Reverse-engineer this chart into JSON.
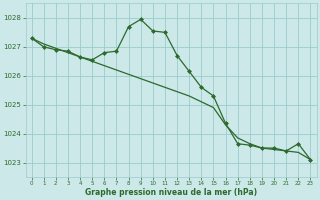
{
  "x": [
    0,
    1,
    2,
    3,
    4,
    5,
    6,
    7,
    8,
    9,
    10,
    11,
    12,
    13,
    14,
    15,
    16,
    17,
    18,
    19,
    20,
    21,
    22,
    23
  ],
  "line_straight_y": [
    1027.3,
    1027.1,
    1026.95,
    1026.8,
    1026.65,
    1026.5,
    1026.35,
    1026.2,
    1026.05,
    1025.9,
    1025.75,
    1025.6,
    1025.45,
    1025.3,
    1025.1,
    1024.9,
    1024.3,
    1023.85,
    1023.65,
    1023.5,
    1023.45,
    1023.4,
    1023.35,
    1023.1
  ],
  "line_jagged_y": [
    1027.3,
    1027.0,
    1026.9,
    1026.85,
    1026.65,
    1026.55,
    1026.8,
    1026.85,
    1027.7,
    1027.95,
    1027.55,
    1027.5,
    1026.7,
    1026.15,
    1025.6,
    1025.3,
    1024.35,
    1023.65,
    1023.6,
    1023.5,
    1023.5,
    1023.4,
    1023.65,
    1023.1
  ],
  "line_color": "#2d6a2d",
  "bg_color": "#cce8e8",
  "grid_color": "#99cccc",
  "xlabel": "Graphe pression niveau de la mer (hPa)",
  "ylim": [
    1022.5,
    1028.5
  ],
  "xlim": [
    -0.5,
    23.5
  ],
  "yticks": [
    1023,
    1024,
    1025,
    1026,
    1027,
    1028
  ],
  "xticks": [
    0,
    1,
    2,
    3,
    4,
    5,
    6,
    7,
    8,
    9,
    10,
    11,
    12,
    13,
    14,
    15,
    16,
    17,
    18,
    19,
    20,
    21,
    22,
    23
  ]
}
